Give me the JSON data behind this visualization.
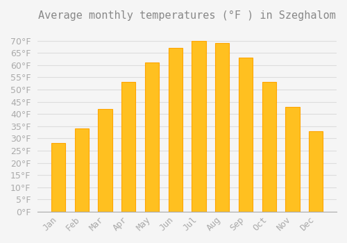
{
  "title": "Average monthly temperatures (°F ) in Szeghalom",
  "months": [
    "Jan",
    "Feb",
    "Mar",
    "Apr",
    "May",
    "Jun",
    "Jul",
    "Aug",
    "Sep",
    "Oct",
    "Nov",
    "Dec"
  ],
  "values": [
    28,
    34,
    42,
    53,
    61,
    67,
    70,
    69,
    63,
    53,
    43,
    33
  ],
  "bar_color": "#FFC020",
  "bar_edge_color": "#FFA500",
  "background_color": "#F5F5F5",
  "grid_color": "#DDDDDD",
  "text_color": "#AAAAAA",
  "title_color": "#888888",
  "ylim": [
    0,
    75
  ],
  "yticks": [
    0,
    5,
    10,
    15,
    20,
    25,
    30,
    35,
    40,
    45,
    50,
    55,
    60,
    65,
    70
  ],
  "ylabel_suffix": "°F",
  "title_fontsize": 11,
  "tick_fontsize": 9
}
